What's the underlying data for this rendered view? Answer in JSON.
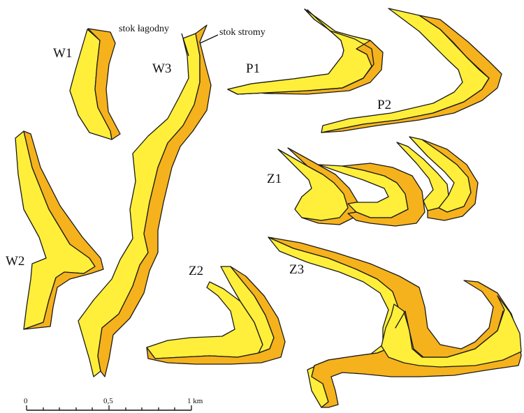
{
  "map": {
    "colors": {
      "gentle_slope": "#ffef3a",
      "steep_slope": "#f5b21c",
      "outline": "#1a1a1a"
    },
    "annotations": {
      "gentle": "stok łagodny",
      "steep": "stok stromy"
    },
    "labels": {
      "w1": "W1",
      "w2": "W2",
      "w3": "W3",
      "p1": "P1",
      "p2": "P2",
      "z1": "Z1",
      "z2": "Z2",
      "z3": "Z3"
    },
    "scale_bar": {
      "tick_0": "0",
      "tick_mid": "0,5",
      "tick_end": "1 km"
    }
  }
}
